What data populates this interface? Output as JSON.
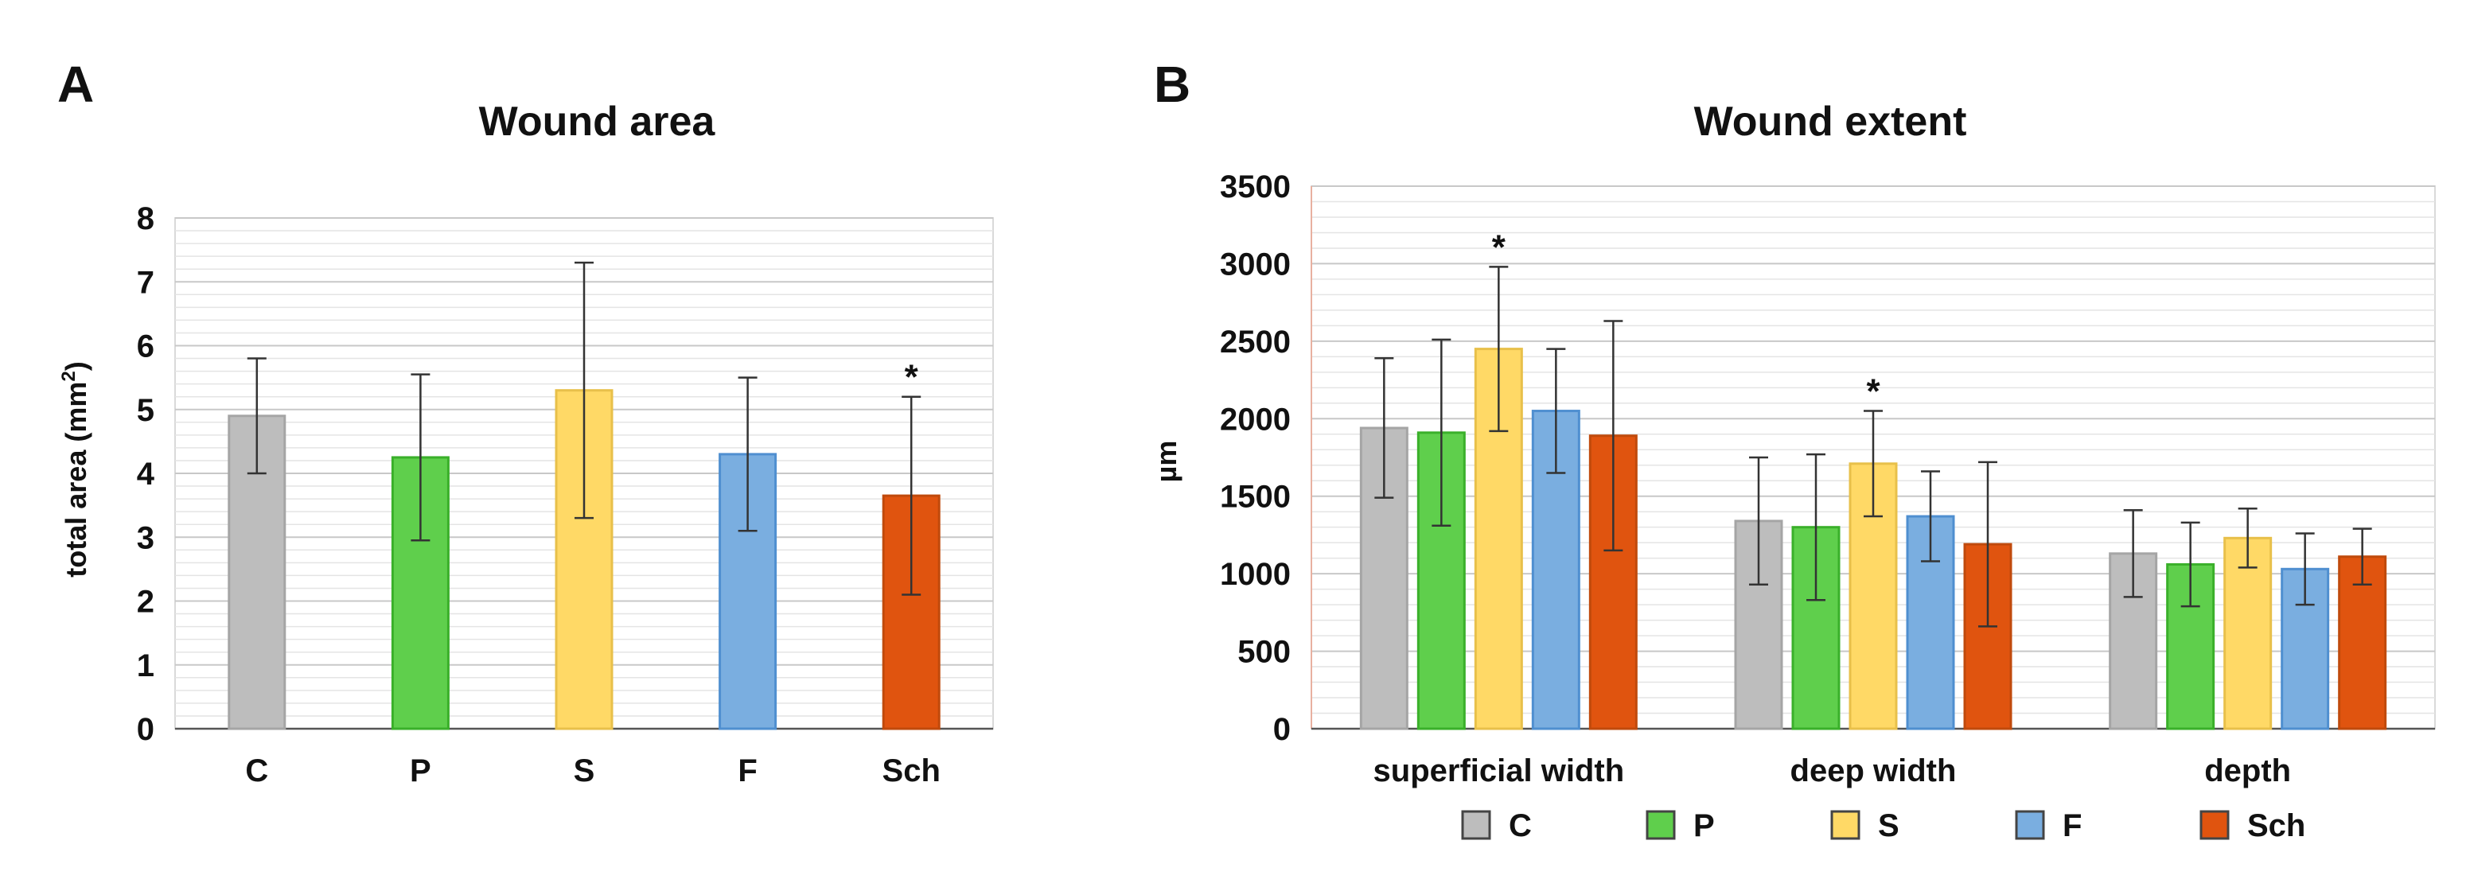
{
  "chart_data": [
    {
      "panel": "A",
      "type": "bar",
      "title": "Wound area",
      "xlabel": "",
      "ylabel": "total area (mm",
      "ylabel_sup": "2",
      "ylabel_end": ")",
      "ylim": [
        0,
        8
      ],
      "yticks": [
        0,
        1,
        2,
        3,
        4,
        5,
        6,
        7,
        8
      ],
      "grid": true,
      "categories": [
        "C",
        "P",
        "S",
        "F",
        "Sch"
      ],
      "values": [
        4.9,
        4.25,
        5.3,
        4.3,
        3.65
      ],
      "error": [
        0.9,
        1.3,
        2.0,
        1.2,
        1.55
      ],
      "colors": [
        "#bdbdbd",
        "#5fcf4c",
        "#ffd966",
        "#7aaee0",
        "#e0540f"
      ],
      "border_colors": [
        "#a5a5a5",
        "#3ab02a",
        "#e8c04a",
        "#4f8fd0",
        "#c04a0c"
      ],
      "significance": [
        "",
        "",
        "",
        "",
        "*"
      ]
    },
    {
      "panel": "B",
      "type": "bar",
      "title": "Wound extent",
      "xlabel": "",
      "ylabel": "µm",
      "ylim": [
        0,
        3500
      ],
      "yticks": [
        0,
        500,
        1000,
        1500,
        2000,
        2500,
        3000,
        3500
      ],
      "grid": true,
      "legend_position": "bottom",
      "categories": [
        "superficial width",
        "deep width",
        "depth"
      ],
      "series": [
        {
          "name": "C",
          "color": "#bdbdbd",
          "border": "#a5a5a5",
          "values": [
            1940,
            1340,
            1130
          ],
          "error": [
            450,
            410,
            280
          ],
          "significance": [
            "",
            "",
            ""
          ]
        },
        {
          "name": "P",
          "color": "#5fcf4c",
          "border": "#3ab02a",
          "values": [
            1910,
            1300,
            1060
          ],
          "error": [
            600,
            470,
            270
          ],
          "significance": [
            "",
            "",
            ""
          ]
        },
        {
          "name": "S",
          "color": "#ffd966",
          "border": "#e8c04a",
          "values": [
            2450,
            1710,
            1230
          ],
          "error": [
            530,
            340,
            190
          ],
          "significance": [
            "*",
            "*",
            ""
          ]
        },
        {
          "name": "F",
          "color": "#7aaee0",
          "border": "#4f8fd0",
          "values": [
            2050,
            1370,
            1030
          ],
          "error": [
            400,
            290,
            230
          ],
          "significance": [
            "",
            "",
            ""
          ]
        },
        {
          "name": "Sch",
          "color": "#e0540f",
          "border": "#c04a0c",
          "values": [
            1890,
            1190,
            1110
          ],
          "error": [
            740,
            530,
            180
          ],
          "significance": [
            "",
            "",
            ""
          ]
        }
      ]
    }
  ]
}
